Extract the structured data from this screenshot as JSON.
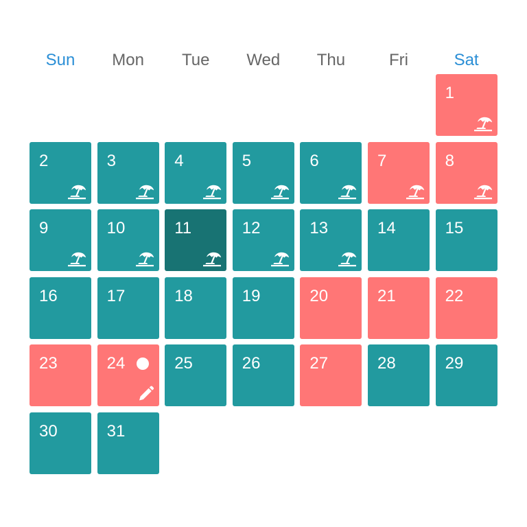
{
  "weekdays": [
    "Sun",
    "Mon",
    "Tue",
    "Wed",
    "Thu",
    "Fri",
    "Sat"
  ],
  "colors": {
    "teal": "#229a9f",
    "red": "#ff7676",
    "today": "#187373",
    "weekend_label": "#2b8fd6",
    "weekday_label": "#666666"
  },
  "days": [
    {
      "day": "1",
      "status": "red",
      "icon": "beach-umbrella-icon"
    },
    {
      "day": "2",
      "status": "teal",
      "icon": "beach-umbrella-icon"
    },
    {
      "day": "3",
      "status": "teal",
      "icon": "beach-umbrella-icon"
    },
    {
      "day": "4",
      "status": "teal",
      "icon": "beach-umbrella-icon"
    },
    {
      "day": "5",
      "status": "teal",
      "icon": "beach-umbrella-icon"
    },
    {
      "day": "6",
      "status": "teal",
      "icon": "beach-umbrella-icon"
    },
    {
      "day": "7",
      "status": "red",
      "icon": "beach-umbrella-icon"
    },
    {
      "day": "8",
      "status": "red",
      "icon": "beach-umbrella-icon"
    },
    {
      "day": "9",
      "status": "teal",
      "icon": "beach-umbrella-icon"
    },
    {
      "day": "10",
      "status": "teal",
      "icon": "beach-umbrella-icon"
    },
    {
      "day": "11",
      "status": "today",
      "icon": "beach-umbrella-icon"
    },
    {
      "day": "12",
      "status": "teal",
      "icon": "beach-umbrella-icon"
    },
    {
      "day": "13",
      "status": "teal",
      "icon": "beach-umbrella-icon"
    },
    {
      "day": "14",
      "status": "teal",
      "icon": ""
    },
    {
      "day": "15",
      "status": "teal",
      "icon": ""
    },
    {
      "day": "16",
      "status": "teal",
      "icon": ""
    },
    {
      "day": "17",
      "status": "teal",
      "icon": ""
    },
    {
      "day": "18",
      "status": "teal",
      "icon": ""
    },
    {
      "day": "19",
      "status": "teal",
      "icon": ""
    },
    {
      "day": "20",
      "status": "red",
      "icon": ""
    },
    {
      "day": "21",
      "status": "red",
      "icon": ""
    },
    {
      "day": "22",
      "status": "red",
      "icon": ""
    },
    {
      "day": "23",
      "status": "red",
      "icon": ""
    },
    {
      "day": "24",
      "status": "red",
      "icon": "pencil-icon",
      "dot": true
    },
    {
      "day": "25",
      "status": "teal",
      "icon": ""
    },
    {
      "day": "26",
      "status": "teal",
      "icon": ""
    },
    {
      "day": "27",
      "status": "red",
      "icon": ""
    },
    {
      "day": "28",
      "status": "teal",
      "icon": ""
    },
    {
      "day": "29",
      "status": "teal",
      "icon": ""
    },
    {
      "day": "30",
      "status": "teal",
      "icon": ""
    },
    {
      "day": "31",
      "status": "teal",
      "icon": ""
    }
  ]
}
